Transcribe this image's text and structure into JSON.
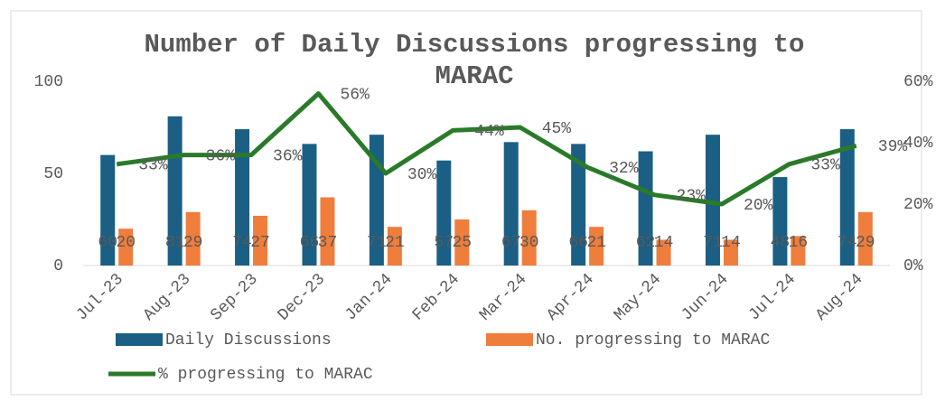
{
  "chart_data": {
    "type": "bar",
    "title": "Number of Daily Discussions progressing to MARAC",
    "categories": [
      "Jul-23",
      "Aug-23",
      "Sep-23",
      "Dec-23",
      "Jan-24",
      "Feb-24",
      "Mar-24",
      "Apr-24",
      "May-24",
      "Jun-24",
      "Jul-24",
      "Aug-24"
    ],
    "series": [
      {
        "name": "Daily Discussions",
        "type": "bar",
        "color": "#1b5f84",
        "values": [
          60,
          81,
          74,
          66,
          71,
          57,
          67,
          66,
          62,
          71,
          48,
          74
        ]
      },
      {
        "name": "No. progressing to MARAC",
        "type": "bar",
        "color": "#ef7d3b",
        "values": [
          20,
          29,
          27,
          37,
          21,
          25,
          30,
          21,
          14,
          14,
          16,
          29
        ]
      },
      {
        "name": "% progressing to MARAC",
        "type": "line",
        "axis": "y2",
        "color": "#2a7a2a",
        "values": [
          33,
          36,
          36,
          56,
          30,
          44,
          45,
          32,
          23,
          20,
          33,
          39
        ],
        "value_labels": [
          "33%",
          "36%",
          "36%",
          "56%",
          "30%",
          "44%",
          "45%",
          "32%",
          "23%",
          "20%",
          "33%",
          "39%"
        ]
      }
    ],
    "ylim": [
      0,
      100
    ],
    "yticks": [
      0,
      50,
      100
    ],
    "y2lim": [
      0,
      60
    ],
    "y2ticks": [
      {
        "value": 0,
        "label": "0%"
      },
      {
        "value": 20,
        "label": "20%"
      },
      {
        "value": 40,
        "label": "40%"
      },
      {
        "value": 60,
        "label": "60%"
      }
    ],
    "legend": "bottom"
  }
}
